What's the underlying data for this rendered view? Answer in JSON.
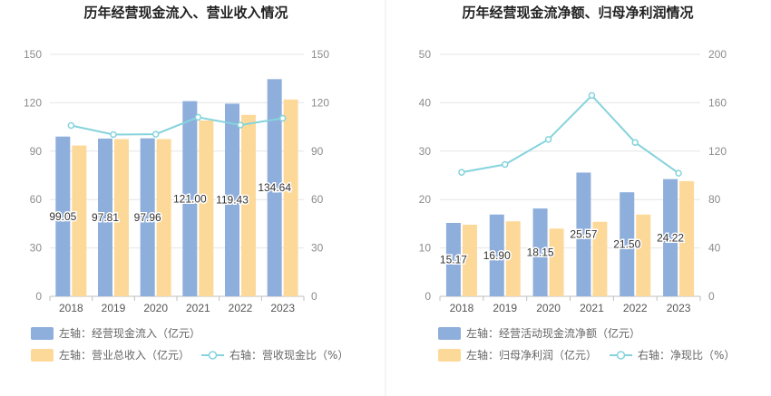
{
  "chart_data": [
    {
      "type": "bar",
      "title": "历年经营现金流入、营业收入情况",
      "categories": [
        "2018",
        "2019",
        "2020",
        "2021",
        "2022",
        "2023"
      ],
      "ylim_left": [
        0,
        150
      ],
      "ylim_right": [
        0,
        150
      ],
      "left_ticks": [
        "0",
        "30",
        "60",
        "90",
        "120",
        "150"
      ],
      "right_ticks": [
        "0",
        "30",
        "60",
        "90",
        "120",
        "150"
      ],
      "grid": true,
      "legend_position": "bottom-left",
      "series": [
        {
          "name": "左轴：经营现金流入（亿元）",
          "type": "bar",
          "axis": "left",
          "color": "#8eaedc",
          "values": [
            99.05,
            97.81,
            97.96,
            121.0,
            119.43,
            134.64
          ],
          "labels": [
            "99.05",
            "97.81",
            "97.96",
            "121.00",
            "119.43",
            "134.64"
          ]
        },
        {
          "name": "左轴：营业总收入（亿元）",
          "type": "bar",
          "axis": "left",
          "color": "#fdd999",
          "values": [
            93.5,
            97.5,
            97.5,
            109.0,
            112.5,
            122.0
          ]
        },
        {
          "name": "右轴：营收现金比（%）",
          "type": "line",
          "axis": "right",
          "color": "#86d3dc",
          "values": [
            105.9,
            100.3,
            100.5,
            111.0,
            106.2,
            110.4
          ]
        }
      ]
    },
    {
      "type": "bar",
      "title": "历年经营现金流净额、归母净利润情况",
      "categories": [
        "2018",
        "2019",
        "2020",
        "2021",
        "2022",
        "2023"
      ],
      "ylim_left": [
        0,
        50
      ],
      "ylim_right": [
        0,
        200
      ],
      "left_ticks": [
        "0",
        "10",
        "20",
        "30",
        "40",
        "50"
      ],
      "right_ticks": [
        "0",
        "40",
        "80",
        "120",
        "160",
        "200"
      ],
      "grid": true,
      "legend_position": "bottom-left",
      "series": [
        {
          "name": "左轴：经营活动现金流净额（亿元）",
          "type": "bar",
          "axis": "left",
          "color": "#8eaedc",
          "values": [
            15.17,
            16.9,
            18.15,
            25.57,
            21.5,
            24.22
          ],
          "labels": [
            "15.17",
            "16.90",
            "18.15",
            "25.57",
            "21.50",
            "24.22"
          ]
        },
        {
          "name": "左轴：归母净利润（亿元）",
          "type": "bar",
          "axis": "left",
          "color": "#fdd999",
          "values": [
            14.8,
            15.5,
            14.0,
            15.4,
            16.9,
            23.8
          ]
        },
        {
          "name": "右轴：净现比（%）",
          "type": "line",
          "axis": "right",
          "color": "#86d3dc",
          "values": [
            102.5,
            109.0,
            129.7,
            166.0,
            127.2,
            101.8
          ]
        }
      ]
    }
  ]
}
